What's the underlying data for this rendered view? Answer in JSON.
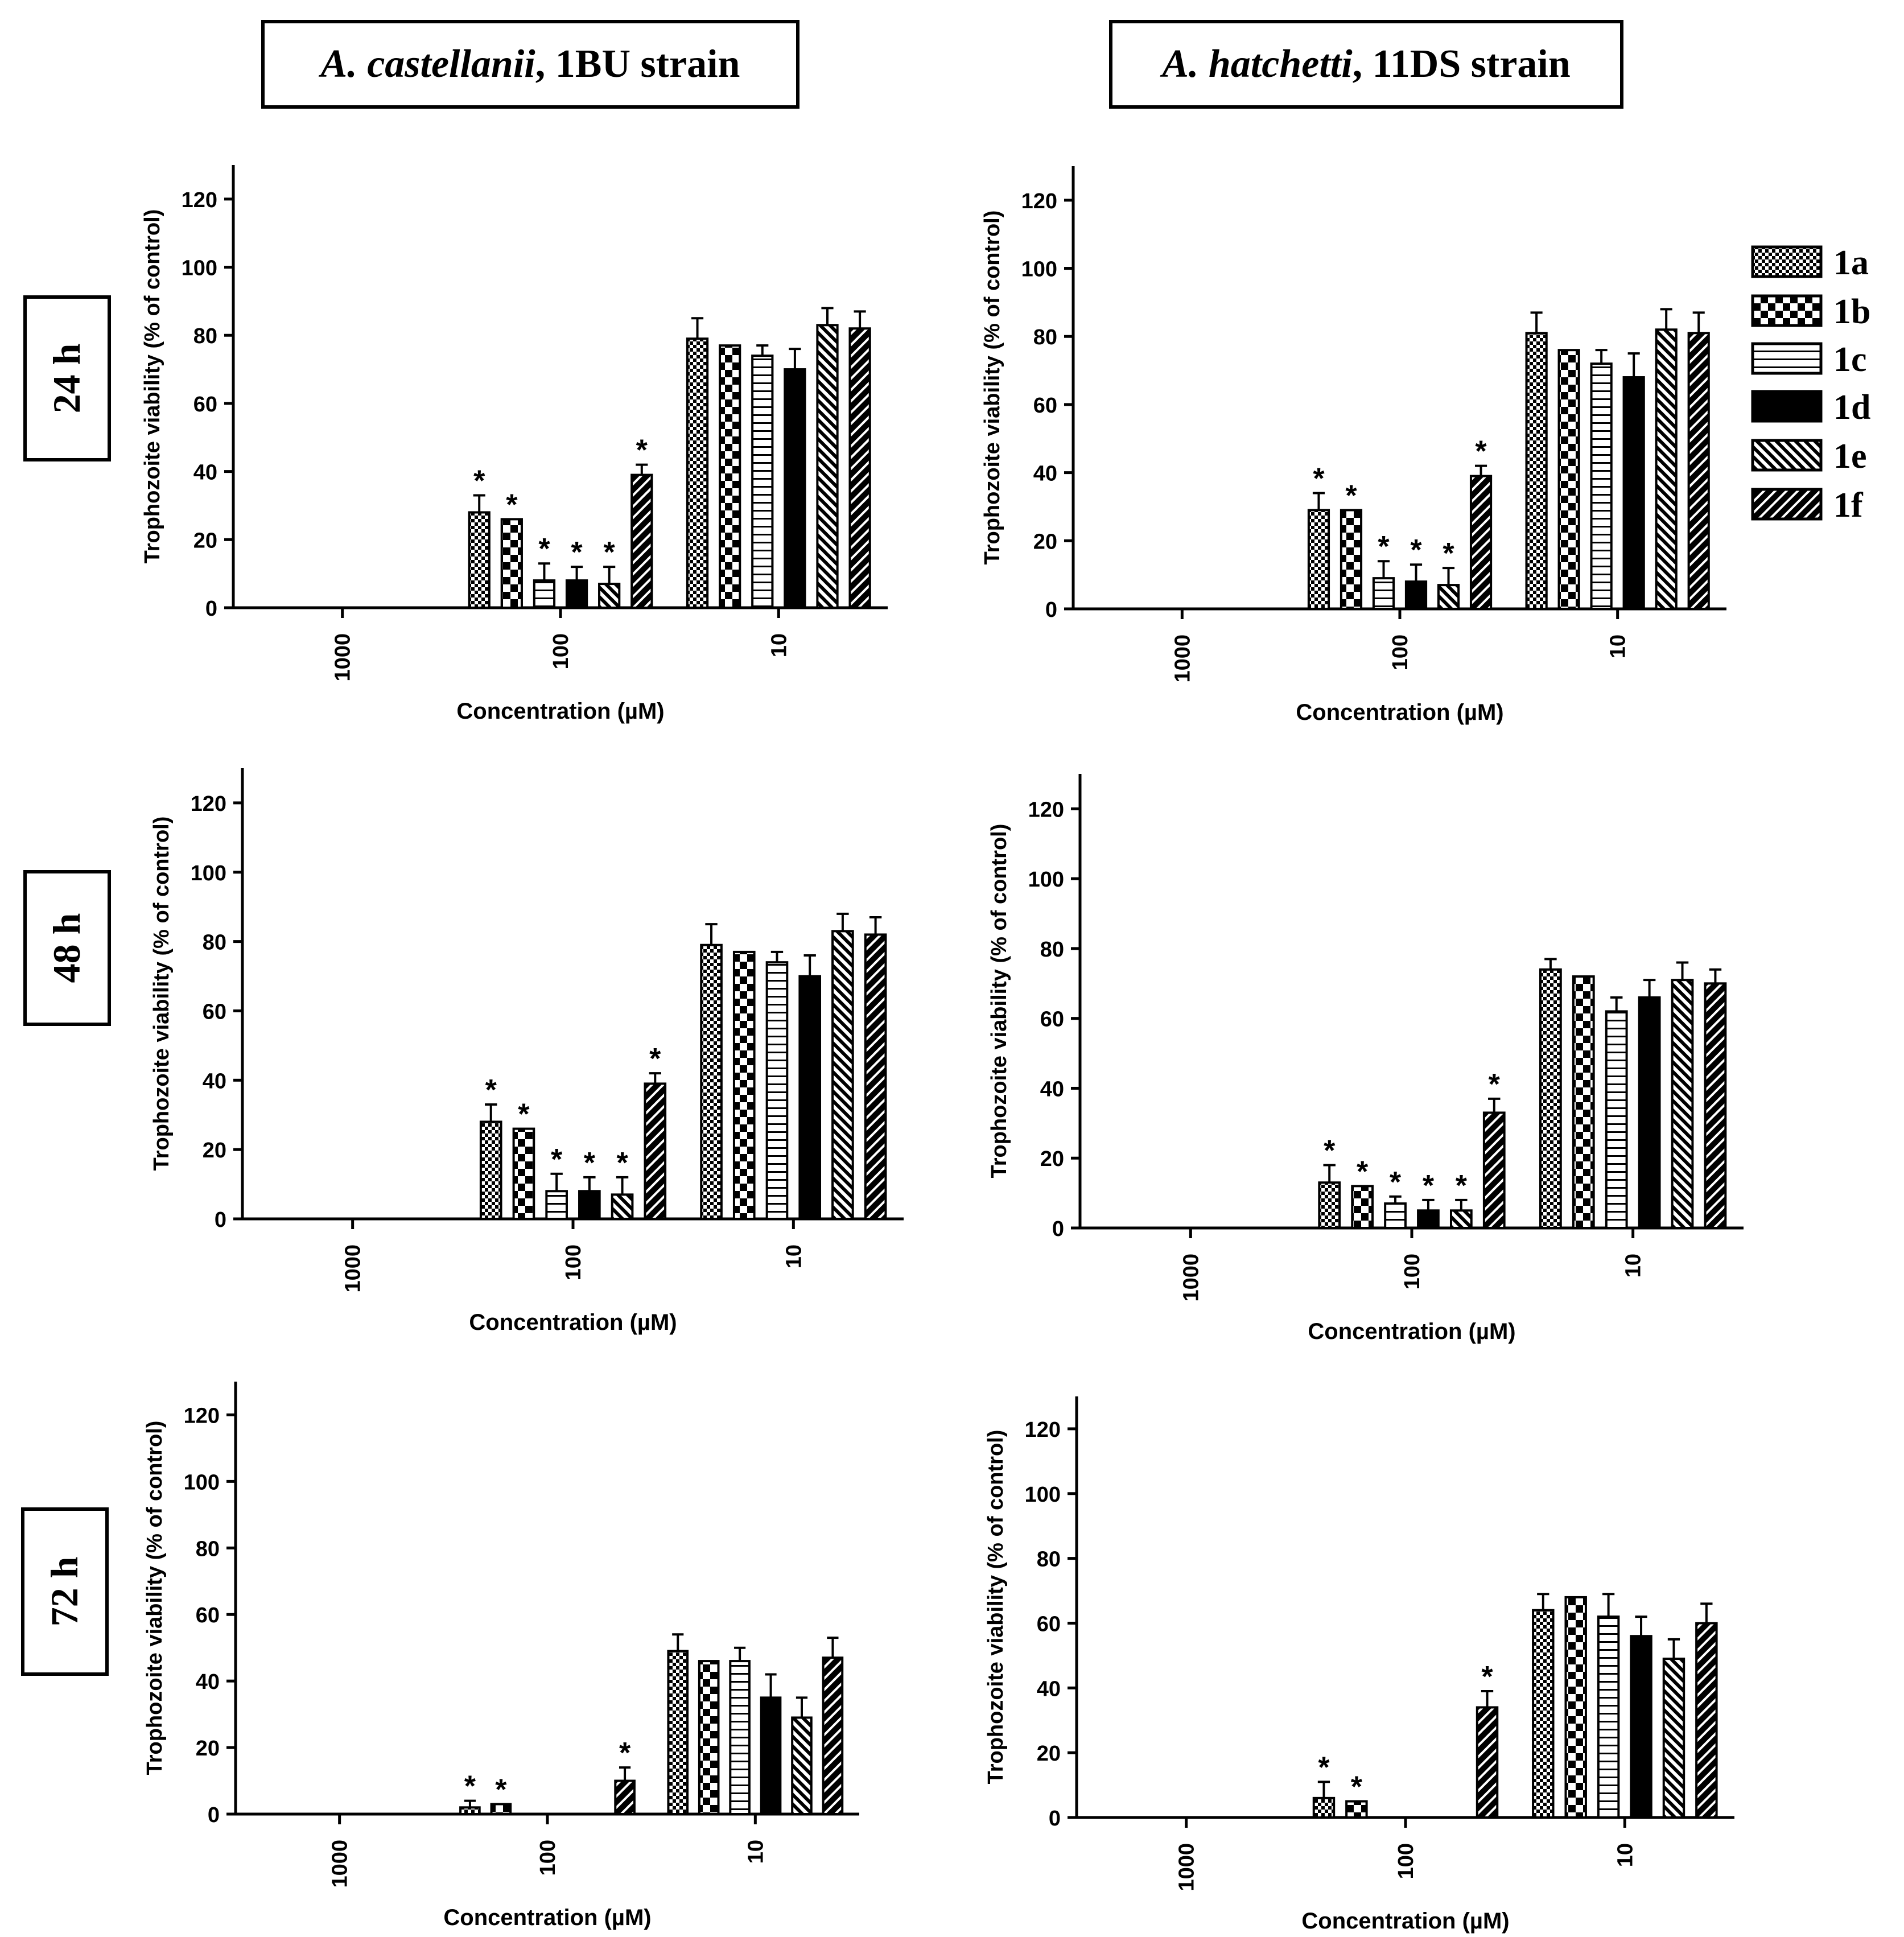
{
  "columns": [
    {
      "species": "A. castellanii",
      "strain": ", 1BU strain"
    },
    {
      "species": "A. hatchetti",
      "strain": ", 11DS strain"
    }
  ],
  "rows": [
    {
      "label": "24 h"
    },
    {
      "label": "48 h"
    },
    {
      "label": "72 h"
    }
  ],
  "legend": {
    "items": [
      {
        "label": "1a",
        "pattern": "checker-fine"
      },
      {
        "label": "1b",
        "pattern": "checker-coarse"
      },
      {
        "label": "1c",
        "pattern": "horizontal-lines"
      },
      {
        "label": "1d",
        "pattern": "solid"
      },
      {
        "label": "1e",
        "pattern": "diagonal-back"
      },
      {
        "label": "1f",
        "pattern": "diagonal-fwd"
      }
    ]
  },
  "colors": {
    "ink": "#000000",
    "background": "#ffffff"
  },
  "chart_data": [
    {
      "id": "castellanii-24h",
      "type": "bar",
      "ylabel": "Trophozoite viability (% of control)",
      "xlabel": "Concentration (µM)",
      "ylim": [
        0,
        130
      ],
      "yticks": [
        0,
        20,
        40,
        60,
        80,
        100,
        120
      ],
      "categories": [
        "1000",
        "100",
        "10"
      ],
      "series": [
        {
          "name": "1a",
          "values": [
            0,
            28,
            79
          ],
          "errors": [
            0,
            5,
            6
          ],
          "significant": [
            false,
            true,
            false
          ]
        },
        {
          "name": "1b",
          "values": [
            0,
            26,
            77
          ],
          "errors": [
            0,
            0,
            0
          ],
          "significant": [
            false,
            true,
            false
          ]
        },
        {
          "name": "1c",
          "values": [
            0,
            8,
            74
          ],
          "errors": [
            0,
            5,
            3
          ],
          "significant": [
            false,
            true,
            false
          ]
        },
        {
          "name": "1d",
          "values": [
            0,
            8,
            70
          ],
          "errors": [
            0,
            4,
            6
          ],
          "significant": [
            false,
            true,
            false
          ]
        },
        {
          "name": "1e",
          "values": [
            0,
            7,
            83
          ],
          "errors": [
            0,
            5,
            5
          ],
          "significant": [
            false,
            true,
            false
          ]
        },
        {
          "name": "1f",
          "values": [
            0,
            39,
            82
          ],
          "errors": [
            0,
            3,
            5
          ],
          "significant": [
            false,
            true,
            false
          ]
        }
      ]
    },
    {
      "id": "hatchetti-24h",
      "type": "bar",
      "ylabel": "Trophozoite viability (% of control)",
      "xlabel": "Concentration (µM)",
      "ylim": [
        0,
        130
      ],
      "yticks": [
        0,
        20,
        40,
        60,
        80,
        100,
        120
      ],
      "categories": [
        "1000",
        "100",
        "10"
      ],
      "series": [
        {
          "name": "1a",
          "values": [
            0,
            29,
            81
          ],
          "errors": [
            0,
            5,
            6
          ],
          "significant": [
            false,
            true,
            false
          ]
        },
        {
          "name": "1b",
          "values": [
            0,
            29,
            76
          ],
          "errors": [
            0,
            0,
            0
          ],
          "significant": [
            false,
            true,
            false
          ]
        },
        {
          "name": "1c",
          "values": [
            0,
            9,
            72
          ],
          "errors": [
            0,
            5,
            4
          ],
          "significant": [
            false,
            true,
            false
          ]
        },
        {
          "name": "1d",
          "values": [
            0,
            8,
            68
          ],
          "errors": [
            0,
            5,
            7
          ],
          "significant": [
            false,
            true,
            false
          ]
        },
        {
          "name": "1e",
          "values": [
            0,
            7,
            82
          ],
          "errors": [
            0,
            5,
            6
          ],
          "significant": [
            false,
            true,
            false
          ]
        },
        {
          "name": "1f",
          "values": [
            0,
            39,
            81
          ],
          "errors": [
            0,
            3,
            6
          ],
          "significant": [
            false,
            true,
            false
          ]
        }
      ]
    },
    {
      "id": "castellanii-48h",
      "type": "bar",
      "ylabel": "Trophozoite viability (% of control)",
      "xlabel": "Concentration (µM)",
      "ylim": [
        0,
        130
      ],
      "yticks": [
        0,
        20,
        40,
        60,
        80,
        100,
        120
      ],
      "categories": [
        "1000",
        "100",
        "10"
      ],
      "series": [
        {
          "name": "1a",
          "values": [
            0,
            28,
            79
          ],
          "errors": [
            0,
            5,
            6
          ],
          "significant": [
            false,
            true,
            false
          ]
        },
        {
          "name": "1b",
          "values": [
            0,
            26,
            77
          ],
          "errors": [
            0,
            0,
            0
          ],
          "significant": [
            false,
            true,
            false
          ]
        },
        {
          "name": "1c",
          "values": [
            0,
            8,
            74
          ],
          "errors": [
            0,
            5,
            3
          ],
          "significant": [
            false,
            true,
            false
          ]
        },
        {
          "name": "1d",
          "values": [
            0,
            8,
            70
          ],
          "errors": [
            0,
            4,
            6
          ],
          "significant": [
            false,
            true,
            false
          ]
        },
        {
          "name": "1e",
          "values": [
            0,
            7,
            83
          ],
          "errors": [
            0,
            5,
            5
          ],
          "significant": [
            false,
            true,
            false
          ]
        },
        {
          "name": "1f",
          "values": [
            0,
            39,
            82
          ],
          "errors": [
            0,
            3,
            5
          ],
          "significant": [
            false,
            true,
            false
          ]
        }
      ]
    },
    {
      "id": "hatchetti-48h",
      "type": "bar",
      "ylabel": "Trophozoite viability (% of control)",
      "xlabel": "Concentration (µM)",
      "ylim": [
        0,
        130
      ],
      "yticks": [
        0,
        20,
        40,
        60,
        80,
        100,
        120
      ],
      "categories": [
        "1000",
        "100",
        "10"
      ],
      "series": [
        {
          "name": "1a",
          "values": [
            0,
            13,
            74
          ],
          "errors": [
            0,
            5,
            3
          ],
          "significant": [
            false,
            true,
            false
          ]
        },
        {
          "name": "1b",
          "values": [
            0,
            12,
            72
          ],
          "errors": [
            0,
            0,
            0
          ],
          "significant": [
            false,
            true,
            false
          ]
        },
        {
          "name": "1c",
          "values": [
            0,
            7,
            62
          ],
          "errors": [
            0,
            2,
            4
          ],
          "significant": [
            false,
            true,
            false
          ]
        },
        {
          "name": "1d",
          "values": [
            0,
            5,
            66
          ],
          "errors": [
            0,
            3,
            5
          ],
          "significant": [
            false,
            true,
            false
          ]
        },
        {
          "name": "1e",
          "values": [
            0,
            5,
            71
          ],
          "errors": [
            0,
            3,
            5
          ],
          "significant": [
            false,
            true,
            false
          ]
        },
        {
          "name": "1f",
          "values": [
            0,
            33,
            70
          ],
          "errors": [
            0,
            4,
            4
          ],
          "significant": [
            false,
            true,
            false
          ]
        }
      ]
    },
    {
      "id": "castellanii-72h",
      "type": "bar",
      "ylabel": "Trophozoite viability (% of control)",
      "xlabel": "Concentration (µM)",
      "ylim": [
        0,
        130
      ],
      "yticks": [
        0,
        20,
        40,
        60,
        80,
        100,
        120
      ],
      "categories": [
        "1000",
        "100",
        "10"
      ],
      "series": [
        {
          "name": "1a",
          "values": [
            0,
            2,
            49
          ],
          "errors": [
            0,
            2,
            5
          ],
          "significant": [
            false,
            true,
            false
          ]
        },
        {
          "name": "1b",
          "values": [
            0,
            3,
            46
          ],
          "errors": [
            0,
            0,
            0
          ],
          "significant": [
            false,
            true,
            false
          ]
        },
        {
          "name": "1c",
          "values": [
            0,
            0,
            46
          ],
          "errors": [
            0,
            0,
            4
          ],
          "significant": [
            false,
            false,
            false
          ]
        },
        {
          "name": "1d",
          "values": [
            0,
            0,
            35
          ],
          "errors": [
            0,
            0,
            7
          ],
          "significant": [
            false,
            false,
            false
          ]
        },
        {
          "name": "1e",
          "values": [
            0,
            0,
            29
          ],
          "errors": [
            0,
            0,
            6
          ],
          "significant": [
            false,
            false,
            false
          ]
        },
        {
          "name": "1f",
          "values": [
            0,
            10,
            47
          ],
          "errors": [
            0,
            4,
            6
          ],
          "significant": [
            false,
            true,
            false
          ]
        }
      ]
    },
    {
      "id": "hatchetti-72h",
      "type": "bar",
      "ylabel": "Trophozoite viability (% of control)",
      "xlabel": "Concentration (µM)",
      "ylim": [
        0,
        130
      ],
      "yticks": [
        0,
        20,
        40,
        60,
        80,
        100,
        120
      ],
      "categories": [
        "1000",
        "100",
        "10"
      ],
      "series": [
        {
          "name": "1a",
          "values": [
            0,
            6,
            64
          ],
          "errors": [
            0,
            5,
            5
          ],
          "significant": [
            false,
            true,
            false
          ]
        },
        {
          "name": "1b",
          "values": [
            0,
            5,
            68
          ],
          "errors": [
            0,
            0,
            0
          ],
          "significant": [
            false,
            true,
            false
          ]
        },
        {
          "name": "1c",
          "values": [
            0,
            0,
            62
          ],
          "errors": [
            0,
            0,
            7
          ],
          "significant": [
            false,
            false,
            false
          ]
        },
        {
          "name": "1d",
          "values": [
            0,
            0,
            56
          ],
          "errors": [
            0,
            0,
            6
          ],
          "significant": [
            false,
            false,
            false
          ]
        },
        {
          "name": "1e",
          "values": [
            0,
            0,
            49
          ],
          "errors": [
            0,
            0,
            6
          ],
          "significant": [
            false,
            false,
            false
          ]
        },
        {
          "name": "1f",
          "values": [
            0,
            34,
            60
          ],
          "errors": [
            0,
            5,
            6
          ],
          "significant": [
            false,
            true,
            false
          ]
        }
      ]
    }
  ]
}
